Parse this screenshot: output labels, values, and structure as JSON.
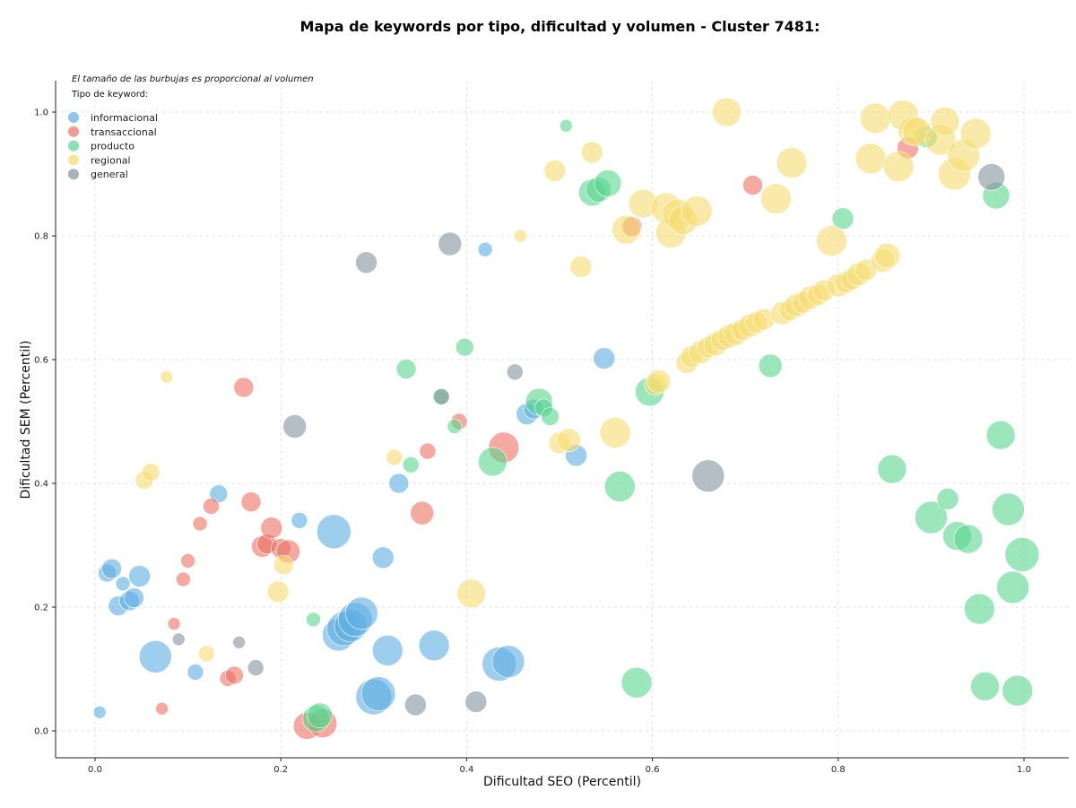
{
  "chart_data": {
    "type": "scatter",
    "title": "Mapa de keywords por tipo, dificultad y volumen - Cluster 7481:",
    "xlabel": "Dificultad SEO (Percentil)",
    "ylabel": "Dificultad SEM (Percentil)",
    "xlim": [
      -0.045,
      1.045
    ],
    "ylim": [
      -0.045,
      1.05
    ],
    "xticks": [
      "0.0",
      "0.2",
      "0.4",
      "0.6",
      "0.8",
      "1.0"
    ],
    "yticks": [
      "0.0",
      "0.2",
      "0.4",
      "0.6",
      "0.8",
      "1.0"
    ],
    "grid": true,
    "legend_placement": "top-left",
    "note": "El tamaño de las burbujas es proporcional al volumen",
    "legend_title": "Tipo de keyword:",
    "series": [
      {
        "name": "informacional",
        "color": "#5DADE2",
        "points": [
          [
            0.005,
            0.03,
            7
          ],
          [
            0.013,
            0.255,
            10
          ],
          [
            0.018,
            0.262,
            11
          ],
          [
            0.025,
            0.202,
            11
          ],
          [
            0.03,
            0.238,
            8
          ],
          [
            0.037,
            0.21,
            11
          ],
          [
            0.042,
            0.215,
            11
          ],
          [
            0.048,
            0.25,
            12
          ],
          [
            0.065,
            0.12,
            18
          ],
          [
            0.108,
            0.095,
            9
          ],
          [
            0.133,
            0.383,
            10
          ],
          [
            0.22,
            0.34,
            9
          ],
          [
            0.257,
            0.322,
            19
          ],
          [
            0.262,
            0.155,
            18
          ],
          [
            0.268,
            0.165,
            19
          ],
          [
            0.275,
            0.17,
            18
          ],
          [
            0.28,
            0.18,
            19
          ],
          [
            0.287,
            0.19,
            18
          ],
          [
            0.3,
            0.055,
            20
          ],
          [
            0.305,
            0.06,
            19
          ],
          [
            0.31,
            0.28,
            12
          ],
          [
            0.315,
            0.13,
            17
          ],
          [
            0.327,
            0.4,
            11
          ],
          [
            0.365,
            0.138,
            17
          ],
          [
            0.42,
            0.778,
            8
          ],
          [
            0.435,
            0.108,
            19
          ],
          [
            0.445,
            0.112,
            18
          ],
          [
            0.465,
            0.512,
            12
          ],
          [
            0.472,
            0.52,
            11
          ],
          [
            0.518,
            0.445,
            12
          ],
          [
            0.548,
            0.602,
            12
          ]
        ]
      },
      {
        "name": "transaccional",
        "color": "#EC7063",
        "points": [
          [
            0.072,
            0.036,
            7
          ],
          [
            0.085,
            0.173,
            7
          ],
          [
            0.095,
            0.245,
            8
          ],
          [
            0.1,
            0.275,
            8
          ],
          [
            0.113,
            0.335,
            8
          ],
          [
            0.125,
            0.363,
            9
          ],
          [
            0.143,
            0.085,
            9
          ],
          [
            0.15,
            0.09,
            10
          ],
          [
            0.16,
            0.555,
            11
          ],
          [
            0.168,
            0.37,
            11
          ],
          [
            0.18,
            0.298,
            12
          ],
          [
            0.185,
            0.302,
            11
          ],
          [
            0.19,
            0.328,
            12
          ],
          [
            0.2,
            0.295,
            11
          ],
          [
            0.208,
            0.29,
            13
          ],
          [
            0.228,
            0.008,
            15
          ],
          [
            0.245,
            0.012,
            16
          ],
          [
            0.352,
            0.352,
            13
          ],
          [
            0.358,
            0.452,
            9
          ],
          [
            0.392,
            0.5,
            9
          ],
          [
            0.44,
            0.458,
            17
          ],
          [
            0.578,
            0.815,
            11
          ],
          [
            0.708,
            0.882,
            11
          ],
          [
            0.875,
            0.942,
            12
          ]
        ]
      },
      {
        "name": "producto",
        "color": "#58D68D",
        "points": [
          [
            0.235,
            0.18,
            8
          ],
          [
            0.238,
            0.02,
            15
          ],
          [
            0.242,
            0.025,
            14
          ],
          [
            0.335,
            0.585,
            11
          ],
          [
            0.34,
            0.43,
            9
          ],
          [
            0.372,
            0.54,
            9
          ],
          [
            0.387,
            0.492,
            8
          ],
          [
            0.398,
            0.62,
            10
          ],
          [
            0.428,
            0.435,
            16
          ],
          [
            0.478,
            0.532,
            15
          ],
          [
            0.483,
            0.522,
            10
          ],
          [
            0.49,
            0.508,
            10
          ],
          [
            0.507,
            0.978,
            7
          ],
          [
            0.535,
            0.87,
            15
          ],
          [
            0.542,
            0.875,
            14
          ],
          [
            0.552,
            0.885,
            15
          ],
          [
            0.565,
            0.395,
            17
          ],
          [
            0.583,
            0.078,
            17
          ],
          [
            0.597,
            0.548,
            16
          ],
          [
            0.727,
            0.59,
            13
          ],
          [
            0.805,
            0.828,
            12
          ],
          [
            0.858,
            0.423,
            16
          ],
          [
            0.895,
            0.96,
            12
          ],
          [
            0.9,
            0.345,
            18
          ],
          [
            0.918,
            0.375,
            12
          ],
          [
            0.928,
            0.315,
            16
          ],
          [
            0.94,
            0.31,
            16
          ],
          [
            0.952,
            0.197,
            17
          ],
          [
            0.958,
            0.072,
            16
          ],
          [
            0.97,
            0.865,
            15
          ],
          [
            0.975,
            0.478,
            16
          ],
          [
            0.983,
            0.358,
            18
          ],
          [
            0.988,
            0.232,
            18
          ],
          [
            0.993,
            0.065,
            17
          ],
          [
            0.998,
            0.285,
            19
          ]
        ]
      },
      {
        "name": "regional",
        "color": "#F7DC6F",
        "points": [
          [
            0.053,
            0.405,
            10
          ],
          [
            0.06,
            0.418,
            10
          ],
          [
            0.077,
            0.572,
            7
          ],
          [
            0.12,
            0.125,
            9
          ],
          [
            0.197,
            0.225,
            12
          ],
          [
            0.203,
            0.268,
            11
          ],
          [
            0.322,
            0.442,
            9
          ],
          [
            0.405,
            0.222,
            16
          ],
          [
            0.458,
            0.8,
            7
          ],
          [
            0.495,
            0.905,
            12
          ],
          [
            0.5,
            0.465,
            12
          ],
          [
            0.51,
            0.47,
            13
          ],
          [
            0.523,
            0.75,
            12
          ],
          [
            0.535,
            0.935,
            12
          ],
          [
            0.56,
            0.482,
            17
          ],
          [
            0.572,
            0.81,
            16
          ],
          [
            0.59,
            0.852,
            16
          ],
          [
            0.603,
            0.56,
            12
          ],
          [
            0.607,
            0.565,
            13
          ],
          [
            0.615,
            0.845,
            17
          ],
          [
            0.62,
            0.805,
            17
          ],
          [
            0.627,
            0.835,
            17
          ],
          [
            0.633,
            0.825,
            16
          ],
          [
            0.637,
            0.595,
            12
          ],
          [
            0.642,
            0.605,
            12
          ],
          [
            0.648,
            0.84,
            17
          ],
          [
            0.652,
            0.612,
            13
          ],
          [
            0.66,
            0.62,
            12
          ],
          [
            0.668,
            0.625,
            13
          ],
          [
            0.675,
            0.632,
            12
          ],
          [
            0.68,
            1.0,
            16
          ],
          [
            0.683,
            0.638,
            13
          ],
          [
            0.69,
            0.642,
            13
          ],
          [
            0.697,
            0.648,
            12
          ],
          [
            0.705,
            0.655,
            13
          ],
          [
            0.712,
            0.66,
            12
          ],
          [
            0.72,
            0.665,
            12
          ],
          [
            0.733,
            0.86,
            17
          ],
          [
            0.74,
            0.675,
            13
          ],
          [
            0.748,
            0.68,
            12
          ],
          [
            0.75,
            0.918,
            17
          ],
          [
            0.755,
            0.688,
            13
          ],
          [
            0.762,
            0.692,
            12
          ],
          [
            0.77,
            0.7,
            13
          ],
          [
            0.778,
            0.705,
            12
          ],
          [
            0.785,
            0.712,
            12
          ],
          [
            0.793,
            0.792,
            17
          ],
          [
            0.8,
            0.72,
            13
          ],
          [
            0.808,
            0.725,
            12
          ],
          [
            0.815,
            0.73,
            12
          ],
          [
            0.822,
            0.738,
            13
          ],
          [
            0.83,
            0.745,
            12
          ],
          [
            0.835,
            0.925,
            17
          ],
          [
            0.84,
            0.99,
            17
          ],
          [
            0.848,
            0.76,
            13
          ],
          [
            0.853,
            0.768,
            14
          ],
          [
            0.865,
            0.912,
            17
          ],
          [
            0.87,
            0.995,
            17
          ],
          [
            0.88,
            0.97,
            16
          ],
          [
            0.885,
            0.968,
            16
          ],
          [
            0.91,
            0.955,
            17
          ],
          [
            0.915,
            0.985,
            16
          ],
          [
            0.925,
            0.9,
            18
          ],
          [
            0.935,
            0.93,
            18
          ],
          [
            0.948,
            0.965,
            17
          ]
        ]
      },
      {
        "name": "general",
        "color": "#85929E",
        "points": [
          [
            0.09,
            0.148,
            7
          ],
          [
            0.155,
            0.143,
            7
          ],
          [
            0.173,
            0.102,
            9
          ],
          [
            0.215,
            0.492,
            13
          ],
          [
            0.292,
            0.757,
            12
          ],
          [
            0.345,
            0.042,
            12
          ],
          [
            0.373,
            0.54,
            9
          ],
          [
            0.382,
            0.787,
            13
          ],
          [
            0.41,
            0.047,
            12
          ],
          [
            0.452,
            0.58,
            9
          ],
          [
            0.66,
            0.412,
            18
          ],
          [
            0.965,
            0.895,
            15
          ]
        ]
      }
    ]
  }
}
